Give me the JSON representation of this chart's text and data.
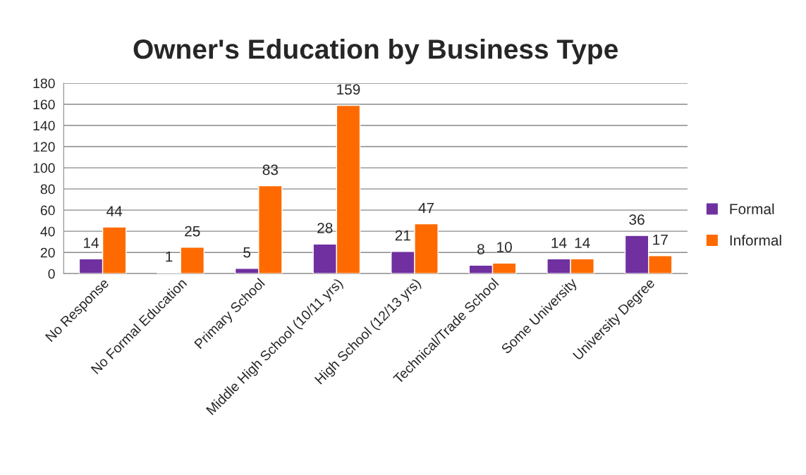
{
  "chart_data": {
    "type": "bar",
    "title": "Owner's Education by Business Type",
    "categories": [
      "No Response",
      "No Formal Education",
      "Primary School",
      "Middle High School (10/11 yrs)",
      "High School (12/13 yrs)",
      "Technical/Trade School",
      "Some University",
      "University Degree"
    ],
    "series": [
      {
        "name": "Formal",
        "color": "#7030a0",
        "values": [
          14,
          1,
          5,
          28,
          21,
          8,
          14,
          36
        ]
      },
      {
        "name": "Informal",
        "color": "#ff6a00",
        "values": [
          44,
          25,
          83,
          159,
          47,
          10,
          14,
          17
        ]
      }
    ],
    "ylim": [
      0,
      180
    ],
    "yticks": [
      0,
      20,
      40,
      60,
      80,
      100,
      120,
      140,
      160,
      180
    ],
    "grid": "y",
    "legend": "right",
    "data_labels": true
  }
}
